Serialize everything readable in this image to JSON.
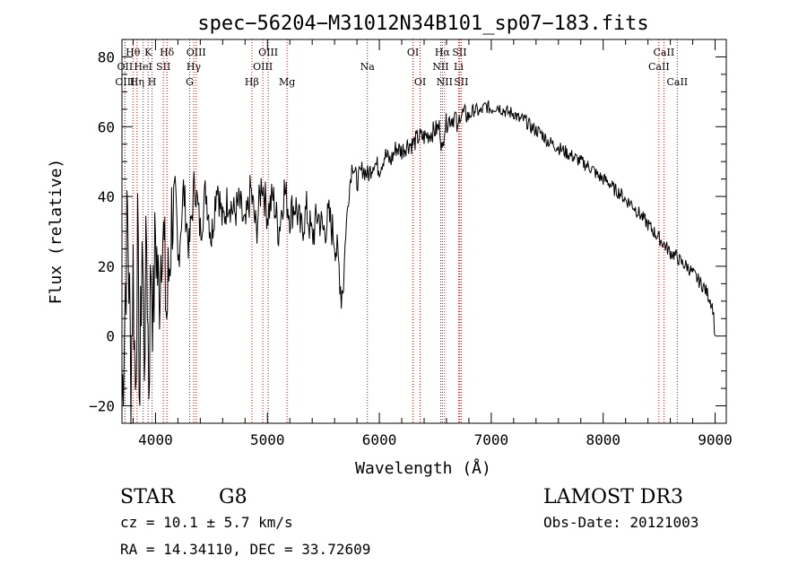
{
  "chart_data": {
    "type": "line",
    "title": "spec−56204−M31012N34B101_sp07−183.fits",
    "xlabel": "Wavelength (Å)",
    "ylabel": "Flux (relative)",
    "xlim": [
      3700,
      9100
    ],
    "ylim": [
      -25,
      85
    ],
    "xticks": [
      4000,
      5000,
      6000,
      7000,
      8000,
      9000
    ],
    "yticks": [
      -20,
      0,
      20,
      40,
      60,
      80
    ],
    "x_minor_step": 200,
    "y_minor_step": 5,
    "series": [
      {
        "name": "flux",
        "points": [
          [
            3700,
            -20
          ],
          [
            3750,
            35
          ],
          [
            3780,
            -10
          ],
          [
            3800,
            20
          ],
          [
            3820,
            -15
          ],
          [
            3840,
            25
          ],
          [
            3860,
            -18
          ],
          [
            3880,
            30
          ],
          [
            3900,
            -5
          ],
          [
            3920,
            28
          ],
          [
            3940,
            -12
          ],
          [
            3960,
            22
          ],
          [
            3980,
            5
          ],
          [
            4000,
            30
          ],
          [
            4030,
            10
          ],
          [
            4060,
            35
          ],
          [
            4100,
            5
          ],
          [
            4150,
            38
          ],
          [
            4200,
            20
          ],
          [
            4250,
            42
          ],
          [
            4300,
            25
          ],
          [
            4350,
            45
          ],
          [
            4400,
            30
          ],
          [
            4450,
            42
          ],
          [
            4500,
            28
          ],
          [
            4550,
            45
          ],
          [
            4600,
            32
          ],
          [
            4650,
            40
          ],
          [
            4700,
            35
          ],
          [
            4750,
            38
          ],
          [
            4800,
            30
          ],
          [
            4850,
            42
          ],
          [
            4900,
            30
          ],
          [
            4950,
            45
          ],
          [
            5000,
            35
          ],
          [
            5050,
            40
          ],
          [
            5100,
            30
          ],
          [
            5150,
            42
          ],
          [
            5200,
            35
          ],
          [
            5250,
            38
          ],
          [
            5300,
            30
          ],
          [
            5350,
            36
          ],
          [
            5400,
            28
          ],
          [
            5450,
            35
          ],
          [
            5500,
            30
          ],
          [
            5550,
            34
          ],
          [
            5600,
            28
          ],
          [
            5640,
            20
          ],
          [
            5660,
            12
          ],
          [
            5680,
            16
          ],
          [
            5700,
            30
          ],
          [
            5730,
            42
          ],
          [
            5760,
            50
          ],
          [
            5800,
            44
          ],
          [
            5850,
            48
          ],
          [
            5900,
            46
          ],
          [
            5950,
            50
          ],
          [
            6000,
            48
          ],
          [
            6050,
            52
          ],
          [
            6100,
            50
          ],
          [
            6150,
            54
          ],
          [
            6200,
            53
          ],
          [
            6250,
            55
          ],
          [
            6300,
            55
          ],
          [
            6350,
            57
          ],
          [
            6400,
            57
          ],
          [
            6450,
            58
          ],
          [
            6500,
            59
          ],
          [
            6540,
            60
          ],
          [
            6563,
            52
          ],
          [
            6580,
            60
          ],
          [
            6620,
            62
          ],
          [
            6680,
            63
          ],
          [
            6700,
            58
          ],
          [
            6720,
            64
          ],
          [
            6800,
            63
          ],
          [
            6850,
            65
          ],
          [
            6900,
            64
          ],
          [
            6950,
            66
          ],
          [
            7000,
            65
          ],
          [
            7050,
            66
          ],
          [
            7100,
            65
          ],
          [
            7150,
            64
          ],
          [
            7200,
            64
          ],
          [
            7250,
            62
          ],
          [
            7300,
            62
          ],
          [
            7350,
            60
          ],
          [
            7400,
            59
          ],
          [
            7450,
            58
          ],
          [
            7500,
            56
          ],
          [
            7550,
            55
          ],
          [
            7600,
            54
          ],
          [
            7650,
            53
          ],
          [
            7700,
            52
          ],
          [
            7750,
            51
          ],
          [
            7800,
            50
          ],
          [
            7850,
            49
          ],
          [
            7900,
            48
          ],
          [
            7950,
            46
          ],
          [
            8000,
            45
          ],
          [
            8050,
            44
          ],
          [
            8100,
            42
          ],
          [
            8150,
            41
          ],
          [
            8200,
            39
          ],
          [
            8250,
            38
          ],
          [
            8300,
            36
          ],
          [
            8350,
            34
          ],
          [
            8400,
            32
          ],
          [
            8450,
            30
          ],
          [
            8500,
            28
          ],
          [
            8550,
            26
          ],
          [
            8600,
            24
          ],
          [
            8650,
            23
          ],
          [
            8700,
            21
          ],
          [
            8750,
            20
          ],
          [
            8800,
            18
          ],
          [
            8850,
            16
          ],
          [
            8900,
            14
          ],
          [
            8950,
            11
          ],
          [
            8980,
            8
          ],
          [
            9000,
            0
          ]
        ]
      }
    ],
    "line_markers": [
      {
        "label": "Hθ",
        "x": 3798,
        "row": 1
      },
      {
        "label": "OII",
        "x": 3727,
        "row": 2
      },
      {
        "label": "OIII",
        "x": 3727,
        "row": 3
      },
      {
        "label": "K",
        "x": 3934,
        "row": 1
      },
      {
        "label": "HeI",
        "x": 3889,
        "row": 2
      },
      {
        "label": "Hη",
        "x": 3835,
        "row": 3
      },
      {
        "label": "H",
        "x": 3969,
        "row": 3
      },
      {
        "label": "Hδ",
        "x": 4102,
        "row": 1
      },
      {
        "label": "SII",
        "x": 4070,
        "row": 2
      },
      {
        "label": "OIII",
        "x": 4363,
        "row": 1
      },
      {
        "label": "Hγ",
        "x": 4341,
        "row": 2
      },
      {
        "label": "G",
        "x": 4305,
        "row": 3
      },
      {
        "label": "Hβ",
        "x": 4861,
        "row": 3
      },
      {
        "label": "OIII",
        "x": 5007,
        "row": 1
      },
      {
        "label": "OIII",
        "x": 4959,
        "row": 2
      },
      {
        "label": "Mg",
        "x": 5175,
        "row": 3
      },
      {
        "label": "Na",
        "x": 5893,
        "row": 2
      },
      {
        "label": "OI",
        "x": 6300,
        "row": 1
      },
      {
        "label": "OI",
        "x": 6364,
        "row": 3
      },
      {
        "label": "Hα",
        "x": 6563,
        "row": 1
      },
      {
        "label": "NII",
        "x": 6548,
        "row": 2
      },
      {
        "label": "NII",
        "x": 6583,
        "row": 3
      },
      {
        "label": "SII",
        "x": 6716,
        "row": 1
      },
      {
        "label": "Li",
        "x": 6708,
        "row": 2
      },
      {
        "label": "SII",
        "x": 6731,
        "row": 3
      },
      {
        "label": "CaII",
        "x": 8542,
        "row": 1
      },
      {
        "label": "CaII",
        "x": 8498,
        "row": 2
      },
      {
        "label": "CaII",
        "x": 8662,
        "row": 3
      }
    ]
  },
  "info": {
    "class_text": "STAR",
    "subclass_text": "G8",
    "cz_text": "cz = 10.1 ± 5.7 km/s",
    "radec_text": "RA =  14.34110, DEC =  33.72609",
    "survey_text": "LAMOST DR3",
    "obsdate_text": "Obs-Date: 20121003"
  },
  "colors": {
    "line": "#000000",
    "marker_line": "#cc0000",
    "text": "#000000",
    "background": "#ffffff"
  }
}
